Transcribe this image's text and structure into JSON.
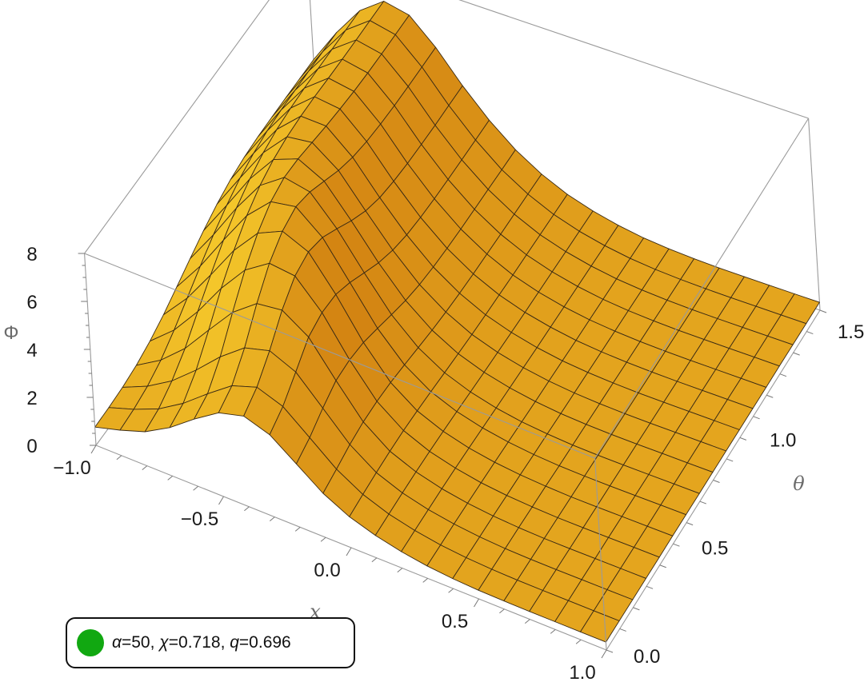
{
  "chart_data": {
    "type": "surface",
    "xlabel": "x",
    "ylabel": "θ",
    "zlabel": "Φ",
    "xlim": [
      -1.0,
      1.0
    ],
    "ylim": [
      0.0,
      1.5708
    ],
    "zlim": [
      0,
      8
    ],
    "x_ticks": [
      "−1.0",
      "−0.5",
      "0.0",
      "0.5",
      "1.0"
    ],
    "y_ticks": [
      "0.0",
      "0.5",
      "1.0",
      "1.5"
    ],
    "z_ticks": [
      "0",
      "2",
      "4",
      "6",
      "8"
    ],
    "legend": [
      {
        "label_parts": [
          "α",
          "=50, ",
          "χ",
          "=0.718, ",
          "q",
          "=0.696"
        ],
        "color": "#11a811"
      }
    ],
    "grid_x": [
      -1.0,
      -0.9,
      -0.8,
      -0.7,
      -0.6,
      -0.5,
      -0.4,
      -0.3,
      -0.2,
      -0.1,
      0.0,
      0.1,
      0.2,
      0.3,
      0.4,
      0.5,
      0.6,
      0.7,
      0.8,
      0.9,
      1.0
    ],
    "grid_theta": [
      0.0,
      0.0982,
      0.1963,
      0.2945,
      0.3927,
      0.4909,
      0.589,
      0.6872,
      0.7854,
      0.8836,
      0.9817,
      1.0799,
      1.1781,
      1.2763,
      1.3744,
      1.4726,
      1.5708
    ],
    "phi": [
      [
        0.76,
        1.06,
        1.42,
        2.02,
        2.8,
        3.49,
        3.78,
        3.43,
        2.64,
        1.84,
        1.29,
        0.94,
        0.69,
        0.52,
        0.42,
        0.36,
        0.34,
        0.33,
        0.33,
        0.33,
        0.33
      ],
      [
        0.78,
        1.13,
        1.57,
        2.22,
        3.04,
        3.8,
        4.16,
        3.78,
        2.9,
        2.01,
        1.38,
        0.98,
        0.72,
        0.54,
        0.43,
        0.37,
        0.34,
        0.33,
        0.33,
        0.33,
        0.33
      ],
      [
        0.83,
        1.29,
        1.93,
        2.8,
        3.77,
        4.56,
        4.86,
        4.39,
        3.3,
        2.2,
        1.45,
        1.02,
        0.74,
        0.56,
        0.44,
        0.37,
        0.34,
        0.33,
        0.33,
        0.33,
        0.33
      ],
      [
        0.95,
        1.58,
        2.48,
        3.66,
        4.81,
        5.59,
        5.73,
        5.02,
        3.62,
        2.31,
        1.5,
        1.05,
        0.76,
        0.57,
        0.45,
        0.38,
        0.34,
        0.33,
        0.33,
        0.33,
        0.33
      ],
      [
        1.16,
        2.03,
        3.21,
        4.59,
        5.76,
        6.45,
        6.33,
        5.21,
        3.65,
        2.33,
        1.52,
        1.06,
        0.77,
        0.57,
        0.45,
        0.38,
        0.34,
        0.33,
        0.33,
        0.33,
        0.33
      ],
      [
        1.46,
        2.56,
        3.93,
        5.36,
        6.48,
        6.97,
        6.51,
        5.14,
        3.54,
        2.28,
        1.5,
        1.05,
        0.76,
        0.57,
        0.45,
        0.38,
        0.34,
        0.33,
        0.33,
        0.33,
        0.33
      ],
      [
        1.83,
        3.1,
        4.58,
        6.0,
        6.98,
        7.17,
        6.29,
        4.81,
        3.3,
        2.18,
        1.46,
        1.03,
        0.75,
        0.56,
        0.44,
        0.37,
        0.34,
        0.33,
        0.33,
        0.33,
        0.33
      ],
      [
        2.21,
        3.6,
        5.12,
        6.45,
        7.18,
        6.97,
        5.83,
        4.39,
        3.04,
        2.06,
        1.41,
        1.0,
        0.73,
        0.55,
        0.44,
        0.37,
        0.34,
        0.33,
        0.33,
        0.33,
        0.33
      ],
      [
        2.58,
        4.03,
        5.52,
        6.72,
        7.14,
        6.6,
        5.34,
        3.98,
        2.8,
        1.95,
        1.36,
        0.98,
        0.72,
        0.54,
        0.43,
        0.37,
        0.34,
        0.33,
        0.33,
        0.33,
        0.33
      ],
      [
        2.89,
        4.37,
        5.81,
        6.86,
        7.01,
        6.23,
        4.93,
        3.68,
        2.63,
        1.87,
        1.32,
        0.96,
        0.71,
        0.54,
        0.43,
        0.37,
        0.34,
        0.33,
        0.33,
        0.33,
        0.33
      ],
      [
        3.12,
        4.6,
        5.98,
        6.91,
        6.88,
        5.96,
        4.66,
        3.49,
        2.53,
        1.82,
        1.3,
        0.95,
        0.7,
        0.53,
        0.43,
        0.37,
        0.34,
        0.33,
        0.33,
        0.33,
        0.33
      ],
      [
        3.26,
        4.74,
        6.06,
        6.91,
        6.78,
        5.8,
        4.52,
        3.39,
        2.48,
        1.79,
        1.29,
        0.94,
        0.7,
        0.53,
        0.43,
        0.37,
        0.34,
        0.33,
        0.33,
        0.33,
        0.33
      ],
      [
        3.32,
        4.8,
        6.09,
        6.88,
        6.7,
        5.71,
        4.44,
        3.34,
        2.45,
        1.78,
        1.28,
        0.94,
        0.7,
        0.53,
        0.43,
        0.37,
        0.34,
        0.33,
        0.33,
        0.33,
        0.33
      ],
      [
        3.34,
        4.82,
        6.1,
        6.86,
        6.65,
        5.66,
        4.41,
        3.32,
        2.44,
        1.77,
        1.28,
        0.94,
        0.7,
        0.53,
        0.43,
        0.37,
        0.34,
        0.33,
        0.33,
        0.33,
        0.33
      ],
      [
        3.35,
        4.83,
        6.1,
        6.85,
        6.63,
        5.64,
        4.39,
        3.31,
        2.44,
        1.77,
        1.28,
        0.94,
        0.7,
        0.53,
        0.43,
        0.37,
        0.34,
        0.33,
        0.33,
        0.33,
        0.33
      ],
      [
        3.35,
        4.83,
        6.1,
        6.85,
        6.62,
        5.63,
        4.39,
        3.31,
        2.43,
        1.77,
        1.28,
        0.94,
        0.7,
        0.53,
        0.43,
        0.37,
        0.34,
        0.33,
        0.33,
        0.33,
        0.33
      ],
      [
        3.35,
        4.83,
        6.1,
        6.85,
        6.62,
        5.63,
        4.39,
        3.31,
        2.43,
        1.77,
        1.28,
        0.94,
        0.7,
        0.53,
        0.43,
        0.37,
        0.34,
        0.33,
        0.33,
        0.33,
        0.33
      ]
    ],
    "surface_color": "#f5a41e",
    "mesh_color": "#3a2a14",
    "box": true,
    "grid": false
  }
}
